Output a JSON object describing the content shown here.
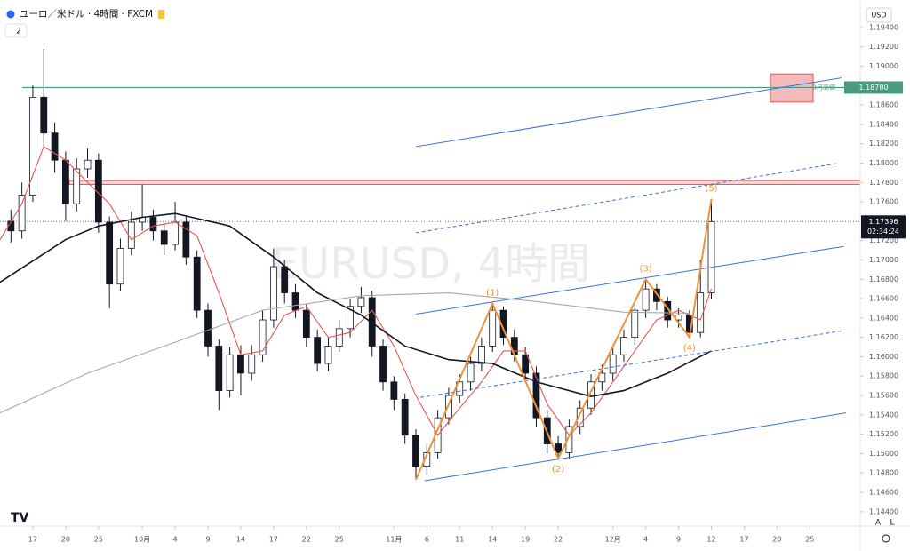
{
  "header": {
    "symbol": "ユーロ／米ドル · 4時間 · FXCM",
    "indicators": "2",
    "currency": "USD",
    "bottom_left": "A",
    "bottom_right": "L"
  },
  "chart_data": {
    "type": "candlestick",
    "watermark": "EURUSD, 4時間",
    "xlim": [
      -3,
      75.6
    ],
    "ylim": [
      1.1427,
      1.1961
    ],
    "xticks": [
      {
        "value": 0,
        "label": "17"
      },
      {
        "value": 3,
        "label": "20"
      },
      {
        "value": 6,
        "label": "25"
      },
      {
        "value": 10,
        "label": "10月"
      },
      {
        "value": 13,
        "label": "4"
      },
      {
        "value": 16,
        "label": "9"
      },
      {
        "value": 19,
        "label": "14"
      },
      {
        "value": 22,
        "label": "17"
      },
      {
        "value": 25,
        "label": "22"
      },
      {
        "value": 28,
        "label": "25"
      },
      {
        "value": 33,
        "label": "11月"
      },
      {
        "value": 36,
        "label": "6"
      },
      {
        "value": 39,
        "label": "11"
      },
      {
        "value": 42,
        "label": "14"
      },
      {
        "value": 45,
        "label": "19"
      },
      {
        "value": 48,
        "label": "22"
      },
      {
        "value": 53,
        "label": "12月"
      },
      {
        "value": 56,
        "label": "4"
      },
      {
        "value": 59,
        "label": "9"
      },
      {
        "value": 62,
        "label": "12"
      },
      {
        "value": 65,
        "label": "17"
      },
      {
        "value": 68,
        "label": "20"
      },
      {
        "value": 71,
        "label": "25"
      }
    ],
    "yticks": [
      {
        "value": 1.144,
        "label": "1.14400"
      },
      {
        "value": 1.146,
        "label": "1.14600"
      },
      {
        "value": 1.148,
        "label": "1.14800"
      },
      {
        "value": 1.15,
        "label": "1.15000"
      },
      {
        "value": 1.152,
        "label": "1.15200"
      },
      {
        "value": 1.154,
        "label": "1.15400"
      },
      {
        "value": 1.156,
        "label": "1.15600"
      },
      {
        "value": 1.158,
        "label": "1.15800"
      },
      {
        "value": 1.16,
        "label": "1.16000"
      },
      {
        "value": 1.162,
        "label": "1.16200"
      },
      {
        "value": 1.164,
        "label": "1.16400"
      },
      {
        "value": 1.166,
        "label": "1.16600"
      },
      {
        "value": 1.168,
        "label": "1.16800"
      },
      {
        "value": 1.17,
        "label": "1.17000"
      },
      {
        "value": 1.172,
        "label": "1.17200"
      },
      {
        "value": 1.176,
        "label": "1.17600"
      },
      {
        "value": 1.178,
        "label": "1.17800"
      },
      {
        "value": 1.18,
        "label": "1.18000"
      },
      {
        "value": 1.182,
        "label": "1.18200"
      },
      {
        "value": 1.184,
        "label": "1.18400"
      },
      {
        "value": 1.186,
        "label": "1.18600"
      },
      {
        "value": 1.19,
        "label": "1.19000"
      },
      {
        "value": 1.192,
        "label": "1.19200"
      },
      {
        "value": 1.194,
        "label": "1.19400"
      }
    ],
    "up_color": "#ffffff",
    "down_color": "#131722",
    "x": [
      -2,
      -1,
      0,
      1,
      2,
      3,
      4,
      5,
      6,
      7,
      8,
      9,
      10,
      11,
      12,
      13,
      14,
      15,
      16,
      17,
      18,
      19,
      20,
      21,
      22,
      23,
      24,
      25,
      26,
      27,
      28,
      29,
      30,
      31,
      32,
      33,
      34,
      35,
      36,
      37,
      38,
      39,
      40,
      41,
      42,
      43,
      44,
      45,
      46,
      47,
      48,
      49,
      50,
      51,
      52,
      53,
      54,
      55,
      56,
      57,
      58,
      59,
      60,
      61,
      62
    ],
    "open": [
      1.174,
      1.173,
      1.1767,
      1.1868,
      1.1831,
      1.1803,
      1.1758,
      1.1794,
      1.1803,
      1.1739,
      1.1675,
      1.1712,
      1.1739,
      1.1744,
      1.173,
      1.1716,
      1.1739,
      1.1703,
      1.1648,
      1.1611,
      1.1565,
      1.1602,
      1.1583,
      1.1602,
      1.1638,
      1.1693,
      1.1666,
      1.1648,
      1.162,
      1.1593,
      1.1611,
      1.1629,
      1.1652,
      1.1661,
      1.1611,
      1.1574,
      1.1556,
      1.1519,
      1.1487,
      1.1501,
      1.1537,
      1.156,
      1.1574,
      1.1593,
      1.1611,
      1.1648,
      1.162,
      1.1602,
      1.1583,
      1.1537,
      1.151,
      1.1501,
      1.1528,
      1.1547,
      1.1574,
      1.1583,
      1.1602,
      1.162,
      1.1648,
      1.167,
      1.1657,
      1.1638,
      1.1643,
      1.1625,
      1.1666
    ],
    "high": [
      1.1752,
      1.178,
      1.188,
      1.1918,
      1.1842,
      1.1812,
      1.1805,
      1.1815,
      1.181,
      1.1745,
      1.1722,
      1.175,
      1.1778,
      1.1752,
      1.1738,
      1.176,
      1.1745,
      1.171,
      1.1655,
      1.1618,
      1.161,
      1.1612,
      1.1612,
      1.1648,
      1.1712,
      1.17,
      1.1675,
      1.1655,
      1.1628,
      1.162,
      1.1638,
      1.166,
      1.1672,
      1.1668,
      1.1618,
      1.158,
      1.1562,
      1.1525,
      1.151,
      1.1545,
      1.1568,
      1.1582,
      1.16,
      1.162,
      1.1655,
      1.1652,
      1.1628,
      1.161,
      1.159,
      1.1545,
      1.1518,
      1.1535,
      1.1555,
      1.1582,
      1.1592,
      1.161,
      1.1628,
      1.1655,
      1.168,
      1.1675,
      1.1662,
      1.165,
      1.1648,
      1.17,
      1.1763
    ],
    "low": [
      1.1718,
      1.1722,
      1.176,
      1.1815,
      1.179,
      1.174,
      1.175,
      1.1785,
      1.1728,
      1.165,
      1.1668,
      1.1705,
      1.173,
      1.172,
      1.1705,
      1.171,
      1.1695,
      1.164,
      1.16,
      1.1545,
      1.1558,
      1.156,
      1.1575,
      1.1595,
      1.163,
      1.1655,
      1.164,
      1.161,
      1.1585,
      1.1585,
      1.1605,
      1.162,
      1.1645,
      1.16,
      1.1565,
      1.1545,
      1.151,
      1.1473,
      1.1478,
      1.1495,
      1.153,
      1.1552,
      1.1565,
      1.1585,
      1.1605,
      1.1612,
      1.1595,
      1.1575,
      1.1528,
      1.15,
      1.1495,
      1.1495,
      1.152,
      1.154,
      1.1565,
      1.1575,
      1.1595,
      1.1612,
      1.164,
      1.1648,
      1.163,
      1.163,
      1.162,
      1.162,
      1.166
    ],
    "close": [
      1.173,
      1.1767,
      1.1868,
      1.1831,
      1.1803,
      1.1758,
      1.1794,
      1.1803,
      1.1739,
      1.1675,
      1.1712,
      1.1739,
      1.1744,
      1.173,
      1.1716,
      1.1739,
      1.1703,
      1.1648,
      1.1611,
      1.1565,
      1.1602,
      1.1583,
      1.1602,
      1.1638,
      1.1693,
      1.1666,
      1.1648,
      1.162,
      1.1593,
      1.1611,
      1.1629,
      1.1652,
      1.1661,
      1.1611,
      1.1574,
      1.1556,
      1.1519,
      1.1487,
      1.1501,
      1.1537,
      1.156,
      1.1574,
      1.1593,
      1.1611,
      1.1648,
      1.162,
      1.1602,
      1.1583,
      1.1537,
      1.151,
      1.1501,
      1.1528,
      1.1547,
      1.1574,
      1.1583,
      1.1602,
      1.162,
      1.1648,
      1.167,
      1.1657,
      1.1638,
      1.1643,
      1.1625,
      1.1666,
      1.17396
    ],
    "series": [
      {
        "color": "#e8554e",
        "x": [
          -3,
          -1,
          1,
          3,
          5,
          7,
          9,
          11,
          13,
          15,
          17,
          19,
          21,
          23,
          25,
          27,
          29,
          31,
          33,
          35,
          37,
          39,
          41,
          43,
          45,
          47,
          49,
          51,
          53,
          55,
          57,
          59,
          61,
          62
        ],
        "values": [
          1.1721,
          1.1758,
          1.1817,
          1.1803,
          1.178,
          1.1758,
          1.1721,
          1.1735,
          1.1739,
          1.1725,
          1.1666,
          1.1602,
          1.1606,
          1.1643,
          1.1652,
          1.162,
          1.1625,
          1.1648,
          1.1611,
          1.156,
          1.1519,
          1.1547,
          1.1574,
          1.1606,
          1.1606,
          1.1551,
          1.1519,
          1.1542,
          1.1574,
          1.1606,
          1.1638,
          1.1648,
          1.1638,
          1.167
        ]
      },
      {
        "color": "#131722",
        "x": [
          -3,
          3,
          6,
          10,
          13,
          18,
          22,
          26,
          30,
          34,
          38,
          42,
          46,
          51,
          54,
          58,
          62
        ],
        "values": [
          1.1677,
          1.1721,
          1.1735,
          1.1744,
          1.1748,
          1.1735,
          1.1703,
          1.1666,
          1.1643,
          1.1611,
          1.1597,
          1.1593,
          1.1574,
          1.1559,
          1.1565,
          1.1583,
          1.1606
        ]
      },
      {
        "color": "#a8a8a8",
        "x": [
          -3,
          5,
          13,
          21,
          30,
          38,
          46,
          54,
          60
        ],
        "values": [
          1.1542,
          1.1583,
          1.1615,
          1.1648,
          1.1663,
          1.1666,
          1.1657,
          1.1646,
          1.1645
        ]
      }
    ],
    "trend_lines": [
      {
        "x": [
          35.0,
          73.9
        ],
        "values": [
          1.1817,
          1.1888
        ],
        "dashed": false
      },
      {
        "x": [
          35.0,
          73.7
        ],
        "values": [
          1.1728,
          1.18
        ],
        "dashed": true
      },
      {
        "x": [
          35.0,
          74.1
        ],
        "values": [
          1.1644,
          1.1714
        ],
        "dashed": false
      },
      {
        "x": [
          35.4,
          74.1
        ],
        "values": [
          1.1558,
          1.1627
        ],
        "dashed": true
      },
      {
        "x": [
          35.8,
          74.3
        ],
        "values": [
          1.1472,
          1.1542
        ],
        "dashed": false
      }
    ],
    "trend_color": "#3a6fe0",
    "wave": {
      "color": "#f0923a",
      "x": [
        35,
        42,
        48,
        56,
        60,
        62
      ],
      "values": [
        1.1473,
        1.1655,
        1.1495,
        1.168,
        1.162,
        1.1763
      ],
      "labels": [
        null,
        "(1)",
        "(2)",
        "(3)",
        "(4)",
        "(5)"
      ]
    },
    "resistance_band": {
      "values": [
        1.1778,
        1.1782
      ],
      "color": "#e8554e"
    },
    "target_box": {
      "x": [
        67.4,
        71.3
      ],
      "values": [
        1.1863,
        1.1892
      ],
      "color": "#f4b9bd"
    },
    "level": {
      "value": 1.1878,
      "value_label": "1.18780",
      "label": "9月高値",
      "color": "#4a9a82"
    },
    "last": {
      "value": 1.17396,
      "value_label": "1.17396",
      "countdown": "02:34:24"
    }
  }
}
